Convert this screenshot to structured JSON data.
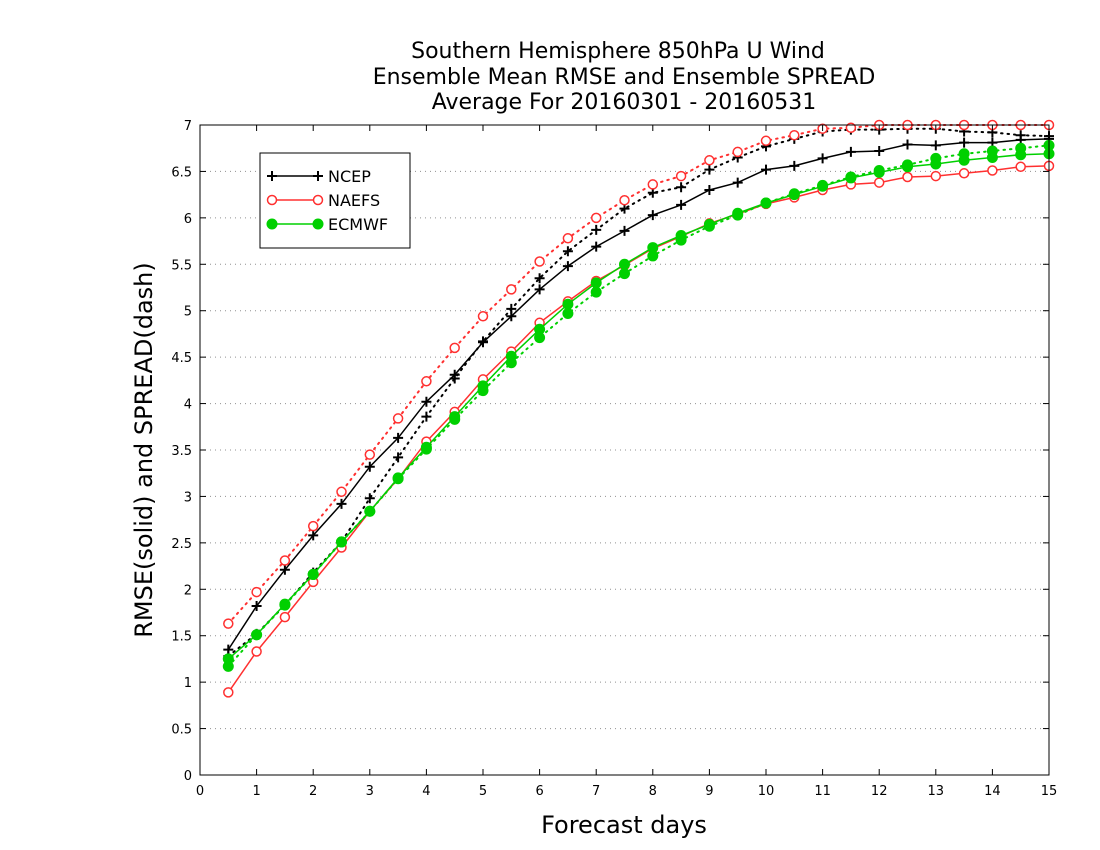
{
  "chart_data": {
    "type": "line",
    "title_lines": [
      "Southern Hemisphere 850hPa U Wind",
      "Ensemble Mean RMSE and Ensemble SPREAD",
      "Average For 20160301 - 20160531"
    ],
    "xlabel": "Forecast days",
    "ylabel": "RMSE(solid) and SPREAD(dash)",
    "xlim": [
      0,
      15
    ],
    "ylim": [
      0,
      7
    ],
    "xticks": [
      "0",
      "1",
      "2",
      "3",
      "4",
      "5",
      "6",
      "7",
      "8",
      "9",
      "10",
      "11",
      "12",
      "13",
      "14",
      "15"
    ],
    "yticks": [
      "0",
      "0.5",
      "1",
      "1.5",
      "2",
      "2.5",
      "3",
      "3.5",
      "4",
      "4.5",
      "5",
      "5.5",
      "6",
      "6.5",
      "7"
    ],
    "grid": "dotted horizontal",
    "legend_position": "top-left",
    "x": [
      0.5,
      1,
      1.5,
      2,
      2.5,
      3,
      3.5,
      4,
      4.5,
      5,
      5.5,
      6,
      6.5,
      7,
      7.5,
      8,
      8.5,
      9,
      9.5,
      10,
      10.5,
      11,
      11.5,
      12,
      12.5,
      13,
      13.5,
      14,
      14.5,
      15
    ],
    "series": [
      {
        "name": "NCEP",
        "color": "#000000",
        "marker": "plus",
        "rmse": [
          1.35,
          1.82,
          2.21,
          2.58,
          2.92,
          3.32,
          3.63,
          4.02,
          4.31,
          4.66,
          4.94,
          5.23,
          5.48,
          5.69,
          5.86,
          6.03,
          6.14,
          6.3,
          6.38,
          6.52,
          6.56,
          6.64,
          6.71,
          6.72,
          6.79,
          6.78,
          6.81,
          6.81,
          6.84,
          6.85
        ],
        "spread": [
          1.28,
          1.52,
          1.83,
          2.18,
          2.51,
          2.98,
          3.42,
          3.86,
          4.27,
          4.67,
          5.02,
          5.35,
          5.64,
          5.87,
          6.1,
          6.27,
          6.33,
          6.52,
          6.65,
          6.77,
          6.85,
          6.93,
          6.95,
          6.95,
          6.96,
          6.96,
          6.93,
          6.92,
          6.89,
          6.88
        ]
      },
      {
        "name": "NAEFS",
        "color": "#ff3030",
        "marker": "circle",
        "rmse": [
          0.89,
          1.33,
          1.7,
          2.08,
          2.45,
          2.84,
          3.19,
          3.59,
          3.91,
          4.26,
          4.56,
          4.87,
          5.1,
          5.32,
          5.49,
          5.67,
          5.8,
          5.94,
          6.04,
          6.15,
          6.22,
          6.3,
          6.36,
          6.38,
          6.44,
          6.45,
          6.48,
          6.51,
          6.55,
          6.56
        ],
        "spread": [
          1.63,
          1.97,
          2.31,
          2.68,
          3.05,
          3.45,
          3.84,
          4.24,
          4.6,
          4.94,
          5.23,
          5.53,
          5.78,
          6.0,
          6.19,
          6.36,
          6.45,
          6.62,
          6.71,
          6.83,
          6.89,
          6.96,
          6.97,
          7.0,
          7.0,
          7.0,
          7.0,
          7.0,
          7.0,
          7.0
        ]
      },
      {
        "name": "ECMWF",
        "color": "#00d000",
        "marker": "filled-circle",
        "rmse": [
          1.25,
          1.51,
          1.84,
          2.16,
          2.51,
          2.84,
          3.2,
          3.53,
          3.86,
          4.19,
          4.51,
          4.8,
          5.07,
          5.3,
          5.5,
          5.68,
          5.81,
          5.93,
          6.05,
          6.16,
          6.25,
          6.34,
          6.43,
          6.49,
          6.55,
          6.58,
          6.62,
          6.65,
          6.68,
          6.69
        ],
        "spread": [
          1.17,
          1.51,
          1.83,
          2.16,
          2.51,
          2.84,
          3.19,
          3.51,
          3.83,
          4.14,
          4.44,
          4.71,
          4.97,
          5.2,
          5.4,
          5.59,
          5.76,
          5.91,
          6.03,
          6.16,
          6.26,
          6.35,
          6.44,
          6.51,
          6.57,
          6.64,
          6.69,
          6.72,
          6.75,
          6.78
        ]
      }
    ]
  }
}
